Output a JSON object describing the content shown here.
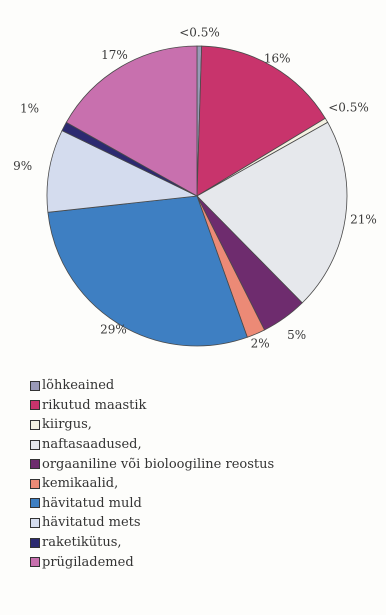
{
  "chart_data": {
    "type": "pie",
    "title": "",
    "legend_position": "bottom",
    "slices": [
      {
        "name": "lõhkeained",
        "value": 0.5,
        "label": "<0.5%",
        "color": "#9a9ab8"
      },
      {
        "name": "rikutud maastik",
        "value": 16,
        "label": "16%",
        "color": "#c8346c"
      },
      {
        "name": "kiirgus,",
        "value": 0.5,
        "label": "<0.5%",
        "color": "#f4f1e2"
      },
      {
        "name": "naftasaadused,",
        "value": 21,
        "label": "21%",
        "color": "#e6e8ec"
      },
      {
        "name": "orgaaniline või bioloogiline reostus",
        "value": 5,
        "label": "5%",
        "color": "#6e2c6e"
      },
      {
        "name": "kemikaalid,",
        "value": 2,
        "label": "2%",
        "color": "#ec8a76"
      },
      {
        "name": "hävitatud muld",
        "value": 29,
        "label": "29%",
        "color": "#3e7fc2"
      },
      {
        "name": "hävitatud mets",
        "value": 9,
        "label": "9%",
        "color": "#d4dcee"
      },
      {
        "name": "raketikütus,",
        "value": 1,
        "label": "1%",
        "color": "#2c2a70"
      },
      {
        "name": "prügilademed",
        "value": 17,
        "label": "17%",
        "color": "#c870ae"
      }
    ]
  }
}
